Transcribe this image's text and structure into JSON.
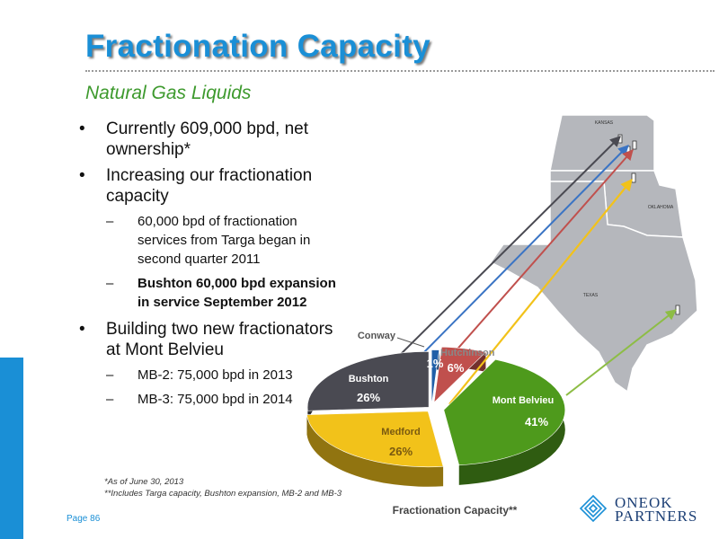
{
  "slide": {
    "title": "Fractionation Capacity",
    "subtitle": "Natural Gas Liquids",
    "page_number": "Page 86"
  },
  "bullets": [
    {
      "level": 1,
      "text": "Currently 609,000 bpd, net ownership*",
      "bold": false
    },
    {
      "level": 1,
      "text": "Increasing our fractionation capacity",
      "bold": false
    },
    {
      "level": 2,
      "text": "60,000 bpd of fractionation services from Targa began in second quarter 2011",
      "bold": false
    },
    {
      "level": 2,
      "text": "Bushton 60,000 bpd expansion in service September 2012",
      "bold": true
    },
    {
      "level": 1,
      "text": "Building two new fractionators at Mont Belvieu",
      "bold": false
    },
    {
      "level": 2,
      "text": "MB-2: 75,000 bpd in 2013",
      "bold": false
    },
    {
      "level": 2,
      "text": "MB-3: 75,000 bpd in 2014",
      "bold": false
    }
  ],
  "footnotes": [
    "*As of June 30, 2013",
    "**Includes Targa capacity, Bushton expansion, MB-2 and MB-3"
  ],
  "map": {
    "state_labels": [
      "KANSAS",
      "OKLAHOMA",
      "TEXAS"
    ]
  },
  "chart_data": {
    "type": "pie",
    "title": "Fractionation Capacity**",
    "slices": [
      {
        "label": "Mont Belvieu",
        "value": 41,
        "value_label": "41%",
        "color": "#4e9a1c"
      },
      {
        "label": "Medford",
        "value": 26,
        "value_label": "26%",
        "color": "#f2c21a"
      },
      {
        "label": "Bushton",
        "value": 26,
        "value_label": "26%",
        "color": "#4a4a52"
      },
      {
        "label": "Conway",
        "value": 1,
        "value_label": "1%",
        "color": "#1f5fa8"
      },
      {
        "label": "Hutchinson",
        "value": 6,
        "value_label": "6%",
        "color": "#c0504d"
      }
    ]
  },
  "logo": {
    "line1": "ONEOK",
    "line2": "PARTNERS"
  },
  "colors": {
    "title": "#1a8fd6",
    "subtitle": "#3e9a2e",
    "accent_bar": "#1a8fd6"
  }
}
